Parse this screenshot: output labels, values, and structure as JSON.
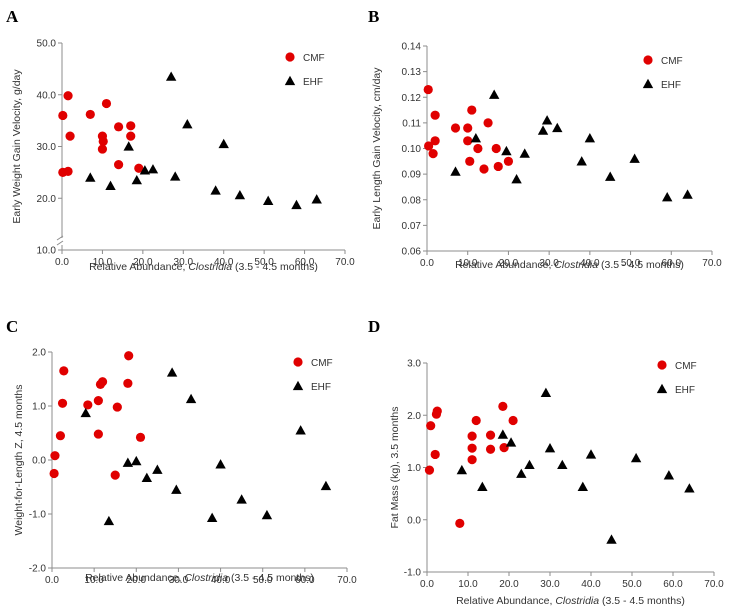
{
  "colors": {
    "cmf": "#e00000",
    "ehf": "#000000",
    "axis": "#8c8c8c"
  },
  "chart_data": [
    {
      "panel": "A",
      "type": "scatter",
      "xlabel_prefix": "Relative Abundance, ",
      "xlabel_italic": "Clostridia",
      "xlabel_suffix": " (3.5 - 4.5 months)",
      "ylabel": "Early Weight Gain Velocity, g/day",
      "xlim": [
        0,
        70
      ],
      "ylim": [
        10,
        50
      ],
      "axis_break": true,
      "xticks": [
        "0.0",
        "10.0",
        "20.0",
        "30.0",
        "40.0",
        "50.0",
        "60.0",
        "70.0"
      ],
      "yticks": [
        "10.0",
        "20.0",
        "30.0",
        "40.0",
        "50.0"
      ],
      "legend_position": "top-right",
      "series": [
        {
          "name": "CMF",
          "marker": "circle",
          "color": "#e00000",
          "points": [
            [
              0.2,
              36
            ],
            [
              0.2,
              25
            ],
            [
              1.5,
              25.2
            ],
            [
              1.5,
              39.8
            ],
            [
              2,
              32
            ],
            [
              7,
              36.2
            ],
            [
              10,
              32
            ],
            [
              10,
              29.5
            ],
            [
              10.2,
              31
            ],
            [
              11,
              38.3
            ],
            [
              14,
              26.5
            ],
            [
              14,
              33.8
            ],
            [
              17,
              34
            ],
            [
              17,
              32
            ],
            [
              19,
              25.8
            ]
          ]
        },
        {
          "name": "EHF",
          "marker": "triangle",
          "color": "#000000",
          "points": [
            [
              7,
              24
            ],
            [
              12,
              22.4
            ],
            [
              16.5,
              30
            ],
            [
              18.5,
              23.5
            ],
            [
              20.5,
              25.4
            ],
            [
              22.5,
              25.6
            ],
            [
              27,
              43.5
            ],
            [
              28,
              24.2
            ],
            [
              31,
              34.3
            ],
            [
              38,
              21.5
            ],
            [
              40,
              30.5
            ],
            [
              44,
              20.6
            ],
            [
              51,
              19.5
            ],
            [
              58,
              18.7
            ],
            [
              63,
              19.8
            ]
          ]
        }
      ]
    },
    {
      "panel": "B",
      "type": "scatter",
      "xlabel_prefix": "Relative Abundance, ",
      "xlabel_italic": "Clostridia",
      "xlabel_suffix": " (3.5 - 4.5 months)",
      "ylabel": "Early Length Gain Velocity, cm/day",
      "xlim": [
        0,
        70
      ],
      "ylim": [
        0.06,
        0.14
      ],
      "axis_break": false,
      "xticks": [
        "0.0",
        "10.0",
        "20.0",
        "30.0",
        "40.0",
        "50.0",
        "60.0",
        "70.0"
      ],
      "yticks": [
        "0.06",
        "0.07",
        "0.08",
        "0.09",
        "0.10",
        "0.11",
        "0.12",
        "0.13",
        "0.14"
      ],
      "legend_position": "top-right",
      "series": [
        {
          "name": "CMF",
          "marker": "circle",
          "color": "#e00000",
          "points": [
            [
              0.3,
              0.123
            ],
            [
              0.4,
              0.101
            ],
            [
              1.5,
              0.098
            ],
            [
              2,
              0.103
            ],
            [
              2,
              0.113
            ],
            [
              7,
              0.108
            ],
            [
              10,
              0.108
            ],
            [
              10,
              0.103
            ],
            [
              10.5,
              0.095
            ],
            [
              11,
              0.115
            ],
            [
              12.5,
              0.1
            ],
            [
              14,
              0.092
            ],
            [
              15,
              0.11
            ],
            [
              17,
              0.1
            ],
            [
              17.5,
              0.093
            ],
            [
              20,
              0.095
            ]
          ]
        },
        {
          "name": "EHF",
          "marker": "triangle",
          "color": "#000000",
          "points": [
            [
              7,
              0.091
            ],
            [
              12,
              0.104
            ],
            [
              16.5,
              0.121
            ],
            [
              19.5,
              0.099
            ],
            [
              22,
              0.088
            ],
            [
              24,
              0.098
            ],
            [
              28.5,
              0.107
            ],
            [
              29.5,
              0.111
            ],
            [
              32,
              0.108
            ],
            [
              38,
              0.095
            ],
            [
              40,
              0.104
            ],
            [
              45,
              0.089
            ],
            [
              51,
              0.096
            ],
            [
              59,
              0.081
            ],
            [
              64,
              0.082
            ]
          ]
        }
      ]
    },
    {
      "panel": "C",
      "type": "scatter",
      "xlabel_prefix": "Relative Abundance, ",
      "xlabel_italic": "Clostridia",
      "xlabel_suffix": " (3.5 - 4.5 months)",
      "ylabel": "Weight-for-Length Z, 4.5 months",
      "xlim": [
        0,
        70
      ],
      "ylim": [
        -2,
        2
      ],
      "axis_break": false,
      "xticks": [
        "0.0",
        "10.0",
        "20.0",
        "30.0",
        "40.0",
        "50.0",
        "60.0",
        "70.0"
      ],
      "yticks": [
        "-2.0",
        "-1.0",
        "0.0",
        "1.0",
        "2.0"
      ],
      "legend_position": "top-right",
      "series": [
        {
          "name": "CMF",
          "marker": "circle",
          "color": "#e00000",
          "points": [
            [
              0.5,
              -0.25
            ],
            [
              0.7,
              0.08
            ],
            [
              2,
              0.45
            ],
            [
              2.5,
              1.05
            ],
            [
              2.8,
              1.65
            ],
            [
              8.5,
              1.02
            ],
            [
              11,
              1.1
            ],
            [
              11,
              0.48
            ],
            [
              11.5,
              1.4
            ],
            [
              12,
              1.45
            ],
            [
              15,
              -0.28
            ],
            [
              15.5,
              0.98
            ],
            [
              18,
              1.42
            ],
            [
              18.2,
              1.93
            ],
            [
              21,
              0.42
            ]
          ]
        },
        {
          "name": "EHF",
          "marker": "triangle",
          "color": "#000000",
          "points": [
            [
              8,
              0.87
            ],
            [
              13.5,
              -1.13
            ],
            [
              18,
              -0.05
            ],
            [
              20,
              -0.02
            ],
            [
              22.5,
              -0.33
            ],
            [
              25,
              -0.18
            ],
            [
              28.5,
              1.62
            ],
            [
              29.5,
              -0.55
            ],
            [
              33,
              1.13
            ],
            [
              38,
              -1.07
            ],
            [
              40,
              -0.08
            ],
            [
              45,
              -0.73
            ],
            [
              51,
              -1.02
            ],
            [
              59,
              0.55
            ],
            [
              65,
              -0.48
            ]
          ]
        }
      ]
    },
    {
      "panel": "D",
      "type": "scatter",
      "xlabel_prefix": "Relative Abundance, ",
      "xlabel_italic": "Clostridia",
      "xlabel_suffix": " (3.5 - 4.5 months)",
      "ylabel": "Fat Mass (kg), 3.5 months",
      "xlim": [
        0,
        70
      ],
      "ylim": [
        -1,
        3
      ],
      "axis_break": false,
      "xticks": [
        "0.0",
        "10.0",
        "20.0",
        "30.0",
        "40.0",
        "50.0",
        "60.0",
        "70.0"
      ],
      "yticks": [
        "-1.0",
        "0.0",
        "1.0",
        "2.0",
        "3.0"
      ],
      "legend_position": "top-right",
      "series": [
        {
          "name": "CMF",
          "marker": "circle",
          "color": "#e00000",
          "points": [
            [
              0.6,
              0.95
            ],
            [
              0.9,
              1.8
            ],
            [
              2,
              1.25
            ],
            [
              2.3,
              2.02
            ],
            [
              2.5,
              2.08
            ],
            [
              8,
              -0.07
            ],
            [
              11,
              1.6
            ],
            [
              11,
              1.37
            ],
            [
              11,
              1.15
            ],
            [
              12,
              1.9
            ],
            [
              15.5,
              1.62
            ],
            [
              15.5,
              1.35
            ],
            [
              18.5,
              2.17
            ],
            [
              18.8,
              1.38
            ],
            [
              21,
              1.9
            ]
          ]
        },
        {
          "name": "EHF",
          "marker": "triangle",
          "color": "#000000",
          "points": [
            [
              8.5,
              0.95
            ],
            [
              13.5,
              0.63
            ],
            [
              18.5,
              1.63
            ],
            [
              20.5,
              1.48
            ],
            [
              23,
              0.88
            ],
            [
              25,
              1.05
            ],
            [
              29,
              2.43
            ],
            [
              30,
              1.37
            ],
            [
              33,
              1.05
            ],
            [
              38,
              0.63
            ],
            [
              40,
              1.25
            ],
            [
              45,
              -0.38
            ],
            [
              51,
              1.18
            ],
            [
              59,
              0.85
            ],
            [
              64,
              0.6
            ]
          ]
        }
      ]
    }
  ]
}
